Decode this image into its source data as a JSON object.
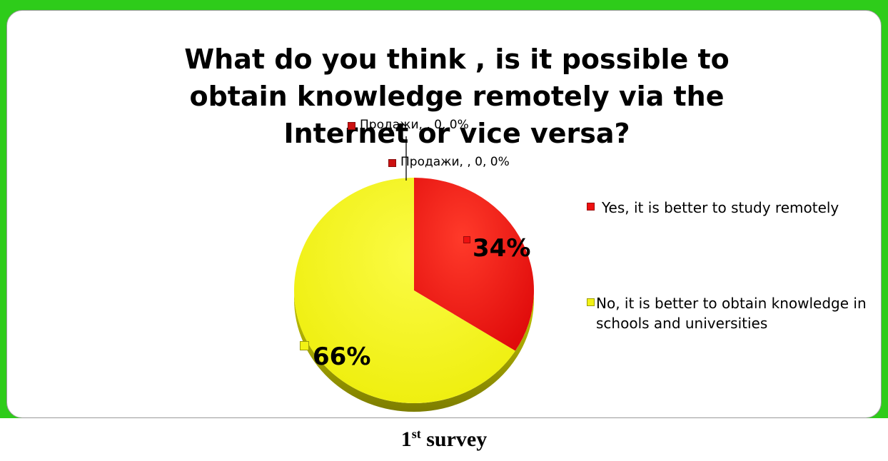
{
  "colors": {
    "frame": "#2ecc1a",
    "slice_yes": "#ee1010",
    "slice_no": "#f2f215",
    "swatch_zero": "#cc1111"
  },
  "chart_data": {
    "type": "pie",
    "title": "What do you think , is it possible to obtain knowledge remotely via the Internet or vice versa?",
    "series": [
      {
        "categories": [
          "Yes, it is better to study remotely",
          "No, it is better to obtain knowledge in schools and universities"
        ],
        "values": [
          34,
          66
        ],
        "data_labels": [
          "34%",
          "66%"
        ]
      }
    ],
    "zero_labels": [
      "Продажи, , 0, 0%",
      "Продажи, , 0, 0%"
    ],
    "legend_position": "right"
  },
  "caption": {
    "number": "1",
    "ordinal_suffix": "st",
    "text": "survey"
  }
}
